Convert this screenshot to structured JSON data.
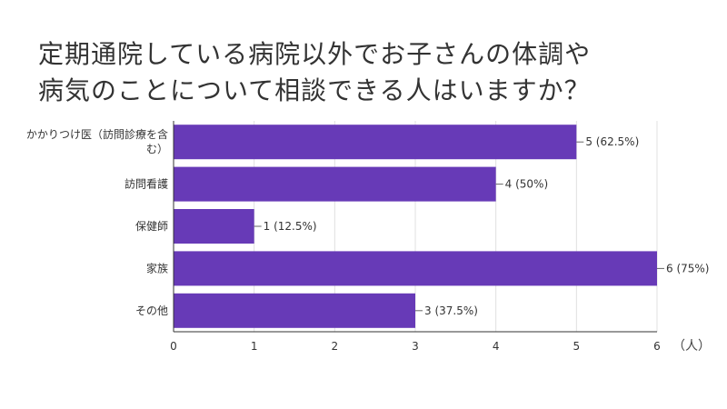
{
  "title_lines": [
    "定期通院している病院以外でお子さんの体調や",
    "病気のことについて相談できる人はいますか？"
  ],
  "colors": {
    "bar": "#673ab7",
    "grid": "#e0e0e0",
    "axis": "#333333",
    "text": "#333333"
  },
  "chart_data": {
    "type": "bar",
    "orientation": "horizontal",
    "title": "定期通院している病院以外でお子さんの体調や病気のことについて相談できる人はいますか？",
    "categories": [
      [
        "かかりつけ医（訪問診療を含",
        "む）"
      ],
      [
        "訪問看護"
      ],
      [
        "保健師"
      ],
      [
        "家族"
      ],
      [
        "その他"
      ]
    ],
    "values": [
      5,
      4,
      1,
      6,
      3
    ],
    "data_labels": [
      "5 (62.5%)",
      "4 (50%)",
      "1 (12.5%)",
      "6 (75%)",
      "3 (37.5%)"
    ],
    "xlim": [
      0,
      6
    ],
    "xticks": [
      "0",
      "1",
      "2",
      "3",
      "4",
      "5",
      "6"
    ],
    "xlabel": "（人）",
    "grid": true,
    "legend": "none"
  }
}
